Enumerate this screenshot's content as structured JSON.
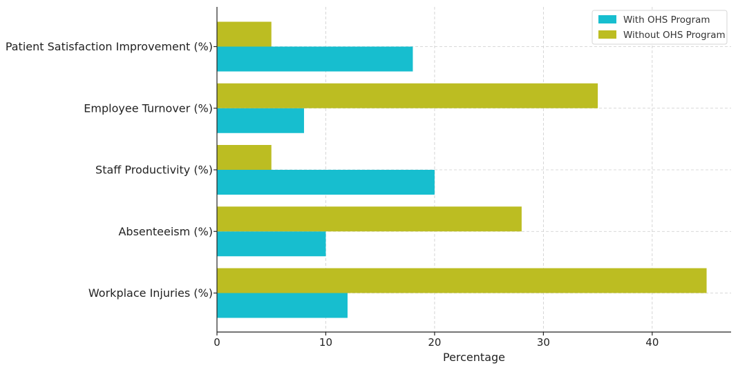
{
  "chart_data": {
    "type": "bar",
    "orientation": "horizontal",
    "categories": [
      "Workplace Injuries (%)",
      "Absenteeism (%)",
      "Staff Productivity (%)",
      "Employee Turnover (%)",
      "Patient Satisfaction Improvement (%)"
    ],
    "series": [
      {
        "name": "With OHS Program",
        "color": "#17becf",
        "values": [
          12,
          10,
          20,
          8,
          18
        ]
      },
      {
        "name": "Without OHS Program",
        "color": "#bcbd22",
        "values": [
          45,
          28,
          5,
          35,
          5
        ]
      }
    ],
    "title": "",
    "xlabel": "Percentage",
    "ylabel": "",
    "xlim": [
      0,
      47.25
    ],
    "xticks": [
      0,
      10,
      20,
      30,
      40
    ],
    "grid": true,
    "legend_position": "top-right"
  }
}
